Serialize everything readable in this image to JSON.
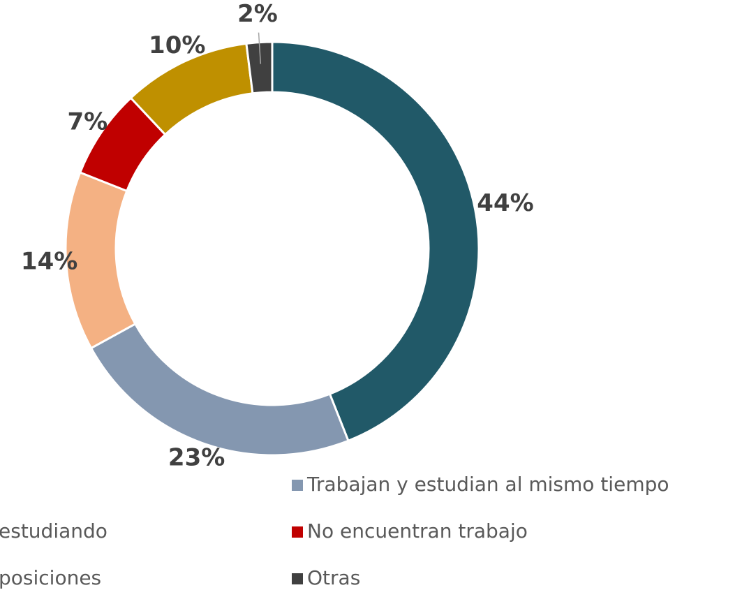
{
  "chart_data": {
    "type": "donut",
    "categories": [
      null,
      "Trabajan y estudian al mismo tiempo",
      "estudiando",
      "No encuentran trabajo",
      "posiciones",
      "Otras"
    ],
    "values": [
      44,
      23,
      14,
      7,
      10,
      2
    ],
    "value_labels": [
      "44%",
      "23%",
      "14%",
      "7%",
      "10%",
      "2%"
    ],
    "colors": [
      "#215968",
      "#8497b0",
      "#f4b183",
      "#c00000",
      "#bf9000",
      "#404040"
    ]
  }
}
